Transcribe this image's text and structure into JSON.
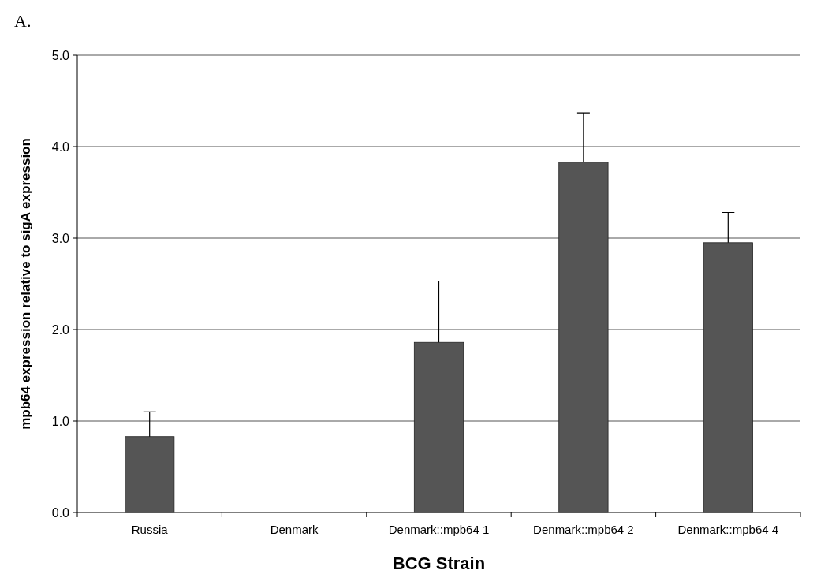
{
  "chart_data": {
    "type": "bar",
    "title": "A.",
    "xlabel": "BCG Strain",
    "ylabel": "mpb64 expression relative to sigA expression",
    "categories": [
      "Russia",
      "Denmark",
      "Denmark::mpb64 1",
      "Denmark::mpb64 2",
      "Denmark::mpb64 4"
    ],
    "values": [
      0.83,
      0,
      1.86,
      3.83,
      2.95
    ],
    "errors": [
      [
        0.83,
        1.1
      ],
      null,
      [
        1.86,
        2.53
      ],
      [
        3.83,
        4.37
      ],
      [
        2.95,
        3.28
      ]
    ],
    "color": "#555555",
    "ylim": [
      0,
      5
    ],
    "yticks": [
      {
        "value": 0,
        "label": "0.0"
      },
      {
        "value": 1,
        "label": "1.0"
      },
      {
        "value": 2,
        "label": "2.0"
      },
      {
        "value": 3,
        "label": "3.0"
      },
      {
        "value": 4,
        "label": "4.0"
      },
      {
        "value": 5,
        "label": "5.0"
      }
    ],
    "grid": "y"
  }
}
